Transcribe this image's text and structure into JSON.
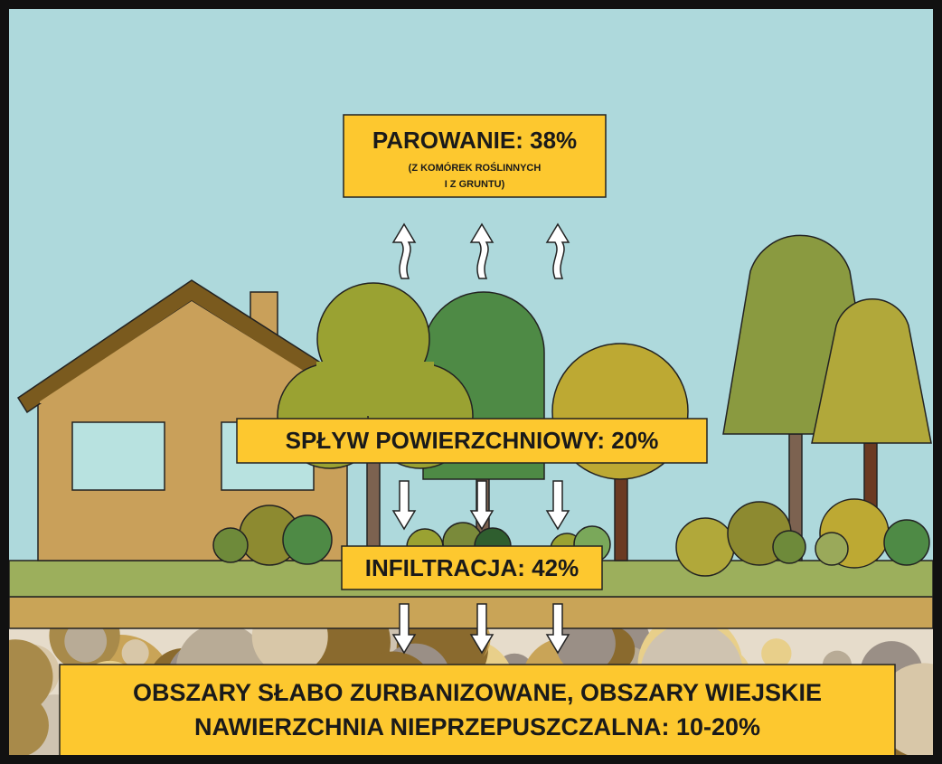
{
  "evaporation": {
    "title": "PAROWANIE: 38%",
    "note": [
      "(Z KOMÓREK ROŚLINNYCH",
      "I Z GRUNTU)"
    ]
  },
  "runoff": {
    "title": "SPŁYW POWIERZCHNIOWY: 20%"
  },
  "infiltration": {
    "title": "INFILTRACJA: 42%"
  },
  "footer": {
    "lines": [
      "OBSZARY SŁABO ZURBANIZOWANE, OBSZARY WIEJSKIE",
      "NAWIERZCHNIA NIEPRZEPUSZCZALNA: 10-20%"
    ]
  }
}
